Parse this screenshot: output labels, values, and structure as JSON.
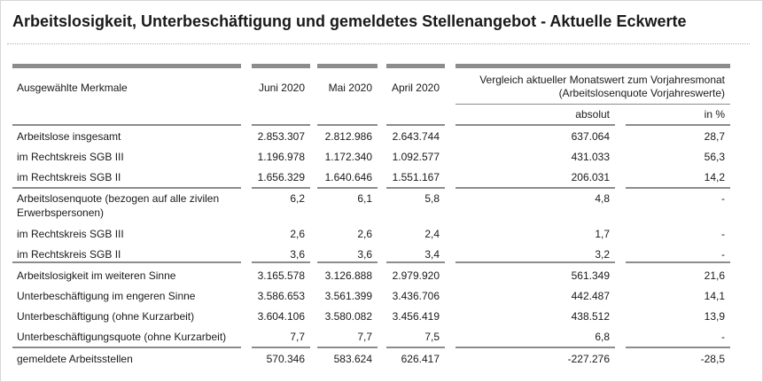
{
  "title": "Arbeitslosigkeit, Unterbeschäftigung und gemeldetes Stellenangebot - Aktuelle Eckwerte",
  "header": {
    "feature_col": "Ausgewählte Merkmale",
    "months": [
      "Juni 2020",
      "Mai 2020",
      "April 2020"
    ],
    "comparison_line1": "Vergleich aktueller Monatswert zum Vorjahresmonat",
    "comparison_line2": "(Arbeitslosenquote Vorjahreswerte)",
    "absolut": "absolut",
    "percent": "in %"
  },
  "rows": [
    {
      "label": "Arbeitslose insgesamt",
      "juni": "2.853.307",
      "mai": "2.812.986",
      "april": "2.643.744",
      "absolut": "637.064",
      "percent": "28,7"
    },
    {
      "label": "im Rechtskreis SGB III",
      "juni": "1.196.978",
      "mai": "1.172.340",
      "april": "1.092.577",
      "absolut": "431.033",
      "percent": "56,3"
    },
    {
      "label": "im Rechtskreis SGB II",
      "juni": "1.656.329",
      "mai": "1.640.646",
      "april": "1.551.167",
      "absolut": "206.031",
      "percent": "14,2"
    },
    {
      "label": "Arbeitslosenquote (bezogen auf alle zivilen",
      "label2": "Erwerbspersonen)",
      "juni": "6,2",
      "mai": "6,1",
      "april": "5,8",
      "absolut": "4,8",
      "percent": "-"
    },
    {
      "label": "im Rechtskreis SGB III",
      "juni": "2,6",
      "mai": "2,6",
      "april": "2,4",
      "absolut": "1,7",
      "percent": "-"
    },
    {
      "label": "im Rechtskreis SGB II",
      "juni": "3,6",
      "mai": "3,6",
      "april": "3,4",
      "absolut": "3,2",
      "percent": "-"
    },
    {
      "label": "Arbeitslosigkeit im weiteren Sinne",
      "juni": "3.165.578",
      "mai": "3.126.888",
      "april": "2.979.920",
      "absolut": "561.349",
      "percent": "21,6"
    },
    {
      "label": "Unterbeschäftigung im engeren Sinne",
      "juni": "3.586.653",
      "mai": "3.561.399",
      "april": "3.436.706",
      "absolut": "442.487",
      "percent": "14,1"
    },
    {
      "label": "Unterbeschäftigung (ohne Kurzarbeit)",
      "juni": "3.604.106",
      "mai": "3.580.082",
      "april": "3.456.419",
      "absolut": "438.512",
      "percent": "13,9"
    },
    {
      "label": "Unterbeschäftigungsquote (ohne Kurzarbeit)",
      "juni": "7,7",
      "mai": "7,7",
      "april": "7,5",
      "absolut": "6,8",
      "percent": "-"
    },
    {
      "label": "gemeldete Arbeitsstellen",
      "juni": "570.346",
      "mai": "583.624",
      "april": "626.417",
      "absolut": "-227.276",
      "percent": "-28,5"
    }
  ]
}
